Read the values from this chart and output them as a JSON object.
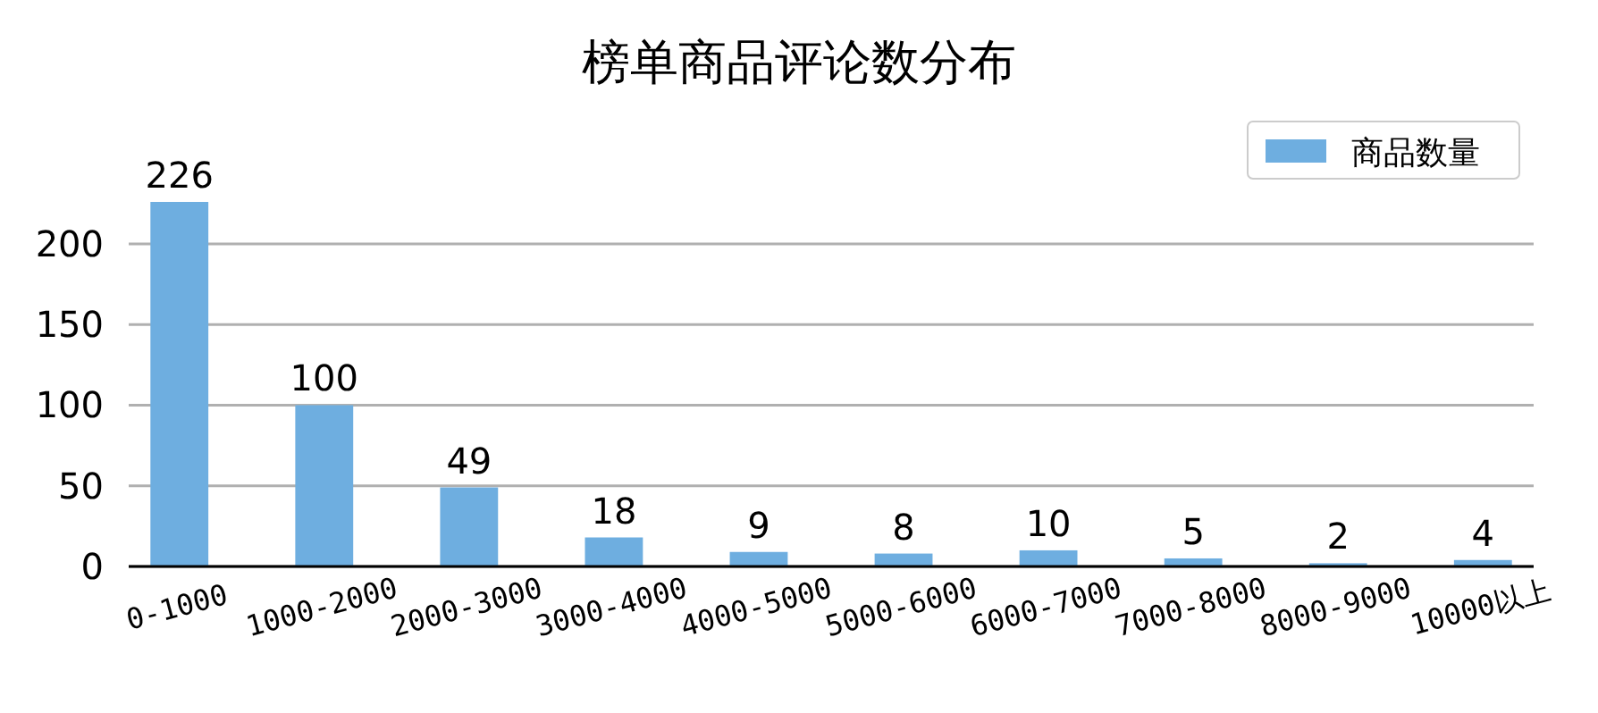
{
  "chart_data": {
    "type": "bar",
    "title": "榜单商品评论数分布",
    "categories": [
      "0-1000",
      "1000-2000",
      "2000-3000",
      "3000-4000",
      "4000-5000",
      "5000-6000",
      "6000-7000",
      "7000-8000",
      "8000-9000",
      "10000以上"
    ],
    "series": [
      {
        "name": "商品数量",
        "color": "#6eaee0",
        "values": [
          226,
          100,
          49,
          18,
          9,
          8,
          10,
          5,
          2,
          4
        ]
      }
    ],
    "ylim": [
      0,
      226
    ],
    "yticks": [
      0,
      50,
      100,
      150,
      200
    ],
    "grid": "y",
    "legend": "top right",
    "data_labels": true
  }
}
